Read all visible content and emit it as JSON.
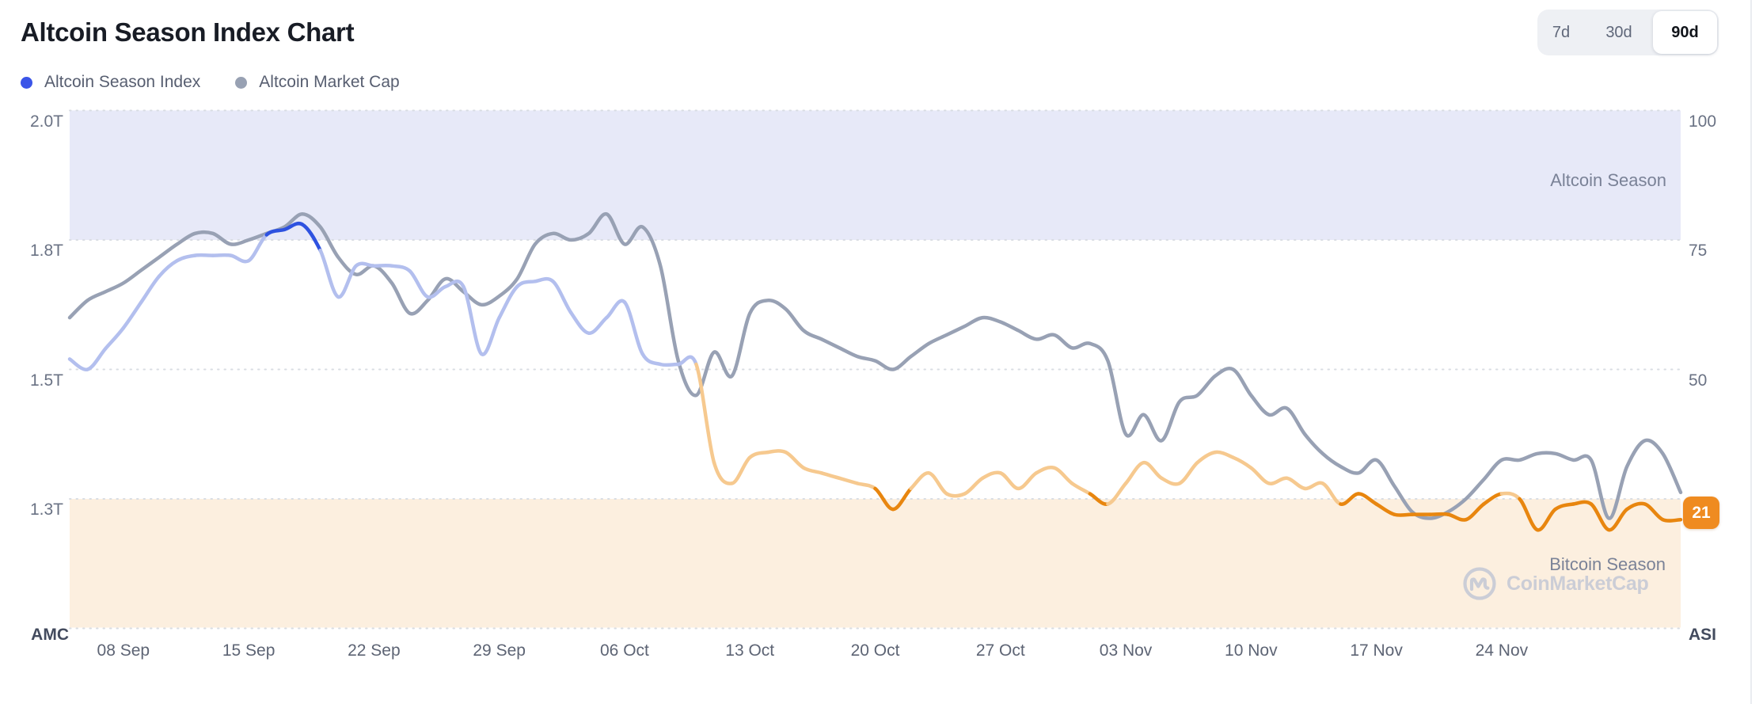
{
  "header": {
    "title": "Altcoin Season Index Chart"
  },
  "legend": {
    "items": [
      {
        "label": "Altcoin Season Index",
        "color": "#3b55e8"
      },
      {
        "label": "Altcoin Market Cap",
        "color": "#98a1b3"
      }
    ]
  },
  "range_switcher": {
    "options": [
      {
        "label": "7d",
        "active": false
      },
      {
        "label": "30d",
        "active": false
      },
      {
        "label": "90d",
        "active": true
      }
    ]
  },
  "watermark": {
    "brand": "CoinMarketCap"
  },
  "chart_data": {
    "type": "line",
    "title": "Altcoin Season Index Chart",
    "x_axis": {
      "cadence": "daily",
      "start_date": "05 Sep",
      "end_date": "04 Dec",
      "tick_labels": [
        "08 Sep",
        "15 Sep",
        "22 Sep",
        "29 Sep",
        "06 Oct",
        "13 Oct",
        "20 Oct",
        "27 Oct",
        "03 Nov",
        "10 Nov",
        "17 Nov",
        "24 Nov"
      ],
      "tick_day_offsets": [
        3,
        10,
        17,
        24,
        31,
        38,
        45,
        52,
        59,
        66,
        73,
        80
      ]
    },
    "left_axis": {
      "label": "AMC",
      "tick_labels": [
        "2.0T",
        "1.8T",
        "1.5T",
        "1.3T"
      ],
      "tick_values_trillions": [
        2.0,
        1.8,
        1.5,
        1.3
      ]
    },
    "right_axis": {
      "label": "ASI",
      "tick_labels": [
        "100",
        "75",
        "50"
      ],
      "tick_values": [
        100,
        75,
        50
      ],
      "range": [
        0,
        100
      ]
    },
    "zones": {
      "altcoin_season": {
        "label": "Altcoin Season",
        "min": 75,
        "band_color": "#e7e9f8"
      },
      "bitcoin_season": {
        "label": "Bitcoin Season",
        "max": 25,
        "band_color": "#fcefdf"
      }
    },
    "grid_color": "#d9dde3",
    "current_value": 21,
    "current_value_color": "#ef8b20",
    "series": [
      {
        "name": "Altcoin Season Index",
        "axis": "right",
        "zone_colors": {
          "altcoin": "#2e52e0",
          "neutral_high": "#b3bfee",
          "neutral_low": "#f6c98f",
          "bitcoin": "#e8860f"
        },
        "values": [
          52,
          50,
          54,
          58,
          63,
          68,
          71,
          72,
          72,
          72,
          71,
          76,
          77,
          78,
          73,
          64,
          70,
          70,
          70,
          69,
          64,
          66,
          66,
          53,
          60,
          66,
          67,
          67,
          61,
          57,
          60,
          63,
          53,
          51,
          51,
          51,
          32,
          28,
          33,
          34,
          34,
          31,
          30,
          29,
          28,
          27,
          23,
          27,
          30,
          26,
          26,
          29,
          30,
          27,
          30,
          31,
          28,
          26,
          24,
          28,
          32,
          29,
          28,
          32,
          34,
          33,
          31,
          28,
          29,
          27,
          28,
          24,
          26,
          24,
          22,
          22,
          22,
          22,
          21,
          24,
          26,
          25,
          19,
          23,
          24,
          24,
          19,
          23,
          24,
          21,
          21
        ]
      },
      {
        "name": "Altcoin Market Cap",
        "axis": "left",
        "unit": "T",
        "color": "#98a1b4",
        "values": [
          1.62,
          1.66,
          1.68,
          1.7,
          1.73,
          1.76,
          1.79,
          1.81,
          1.81,
          1.79,
          1.8,
          1.81,
          1.82,
          1.84,
          1.82,
          1.76,
          1.72,
          1.74,
          1.7,
          1.63,
          1.66,
          1.71,
          1.68,
          1.65,
          1.67,
          1.71,
          1.79,
          1.81,
          1.8,
          1.81,
          1.84,
          1.79,
          1.82,
          1.74,
          1.52,
          1.46,
          1.54,
          1.49,
          1.63,
          1.66,
          1.64,
          1.59,
          1.57,
          1.55,
          1.53,
          1.52,
          1.5,
          1.53,
          1.56,
          1.58,
          1.6,
          1.62,
          1.61,
          1.59,
          1.57,
          1.58,
          1.55,
          1.56,
          1.52,
          1.4,
          1.43,
          1.39,
          1.45,
          1.46,
          1.49,
          1.5,
          1.46,
          1.43,
          1.44,
          1.4,
          1.37,
          1.35,
          1.34,
          1.36,
          1.32,
          1.28,
          1.27,
          1.28,
          1.3,
          1.33,
          1.36,
          1.36,
          1.37,
          1.37,
          1.36,
          1.36,
          1.27,
          1.35,
          1.39,
          1.37,
          1.31
        ]
      }
    ]
  }
}
